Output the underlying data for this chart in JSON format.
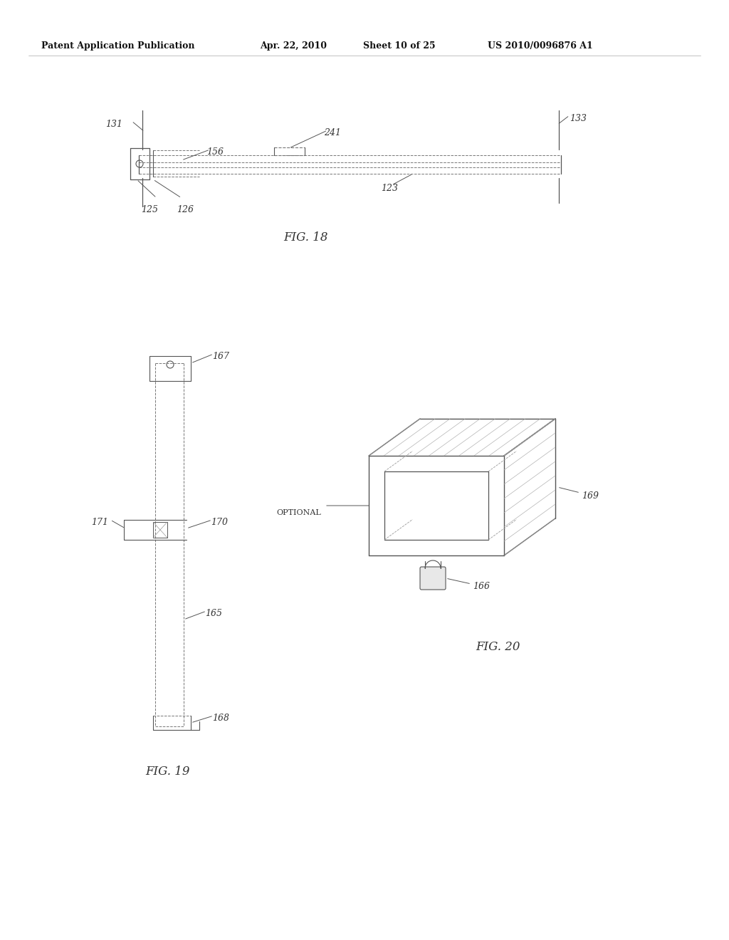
{
  "background_color": "#ffffff",
  "header_text": "Patent Application Publication",
  "header_date": "Apr. 22, 2010",
  "header_sheet": "Sheet 10 of 25",
  "header_patent": "US 2010/0096876 A1",
  "fig18_caption": "FIG. 18",
  "fig19_caption": "FIG. 19",
  "fig20_caption": "FIG. 20",
  "line_color": "#555555",
  "text_color": "#333333",
  "dashed_color": "#999999"
}
